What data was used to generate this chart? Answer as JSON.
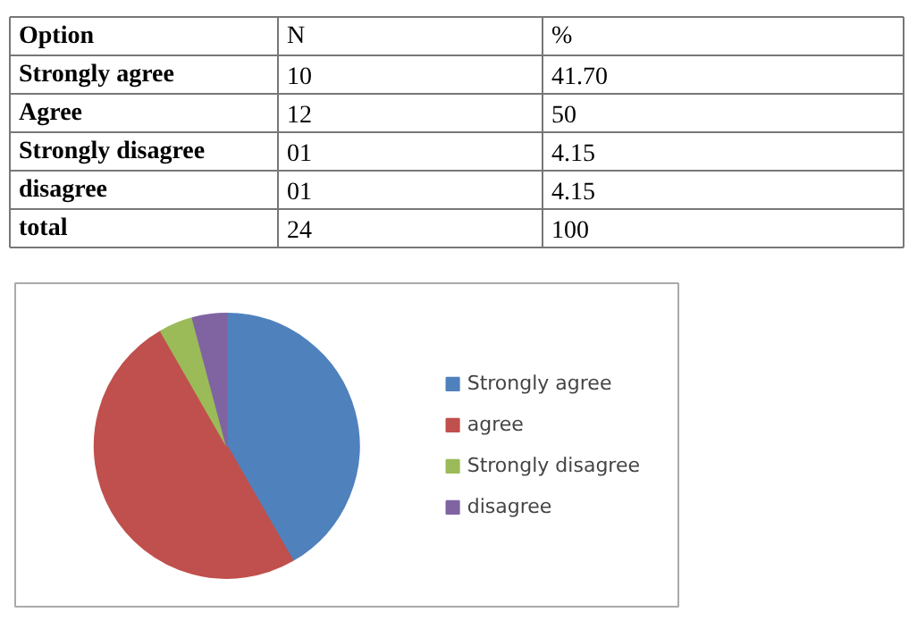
{
  "chart_data": [
    {
      "type": "other",
      "annotations": [
        "Option",
        "N",
        "%",
        "Strongly agree",
        "10",
        "41.70",
        "Agree",
        "12",
        "50",
        "Strongly disagree",
        "01",
        "4.15",
        "disagree",
        "01",
        "4.15",
        "total",
        "24",
        "100"
      ]
    },
    {
      "type": "pie",
      "categories": [
        "Strongly agree",
        "agree",
        "Strongly disagree",
        "disagree"
      ],
      "values": [
        41.7,
        50,
        4.15,
        4.15
      ],
      "colors": [
        "#4f81bd",
        "#c0504d",
        "#9bbb59",
        "#8064a2"
      ],
      "legend": "right"
    }
  ]
}
